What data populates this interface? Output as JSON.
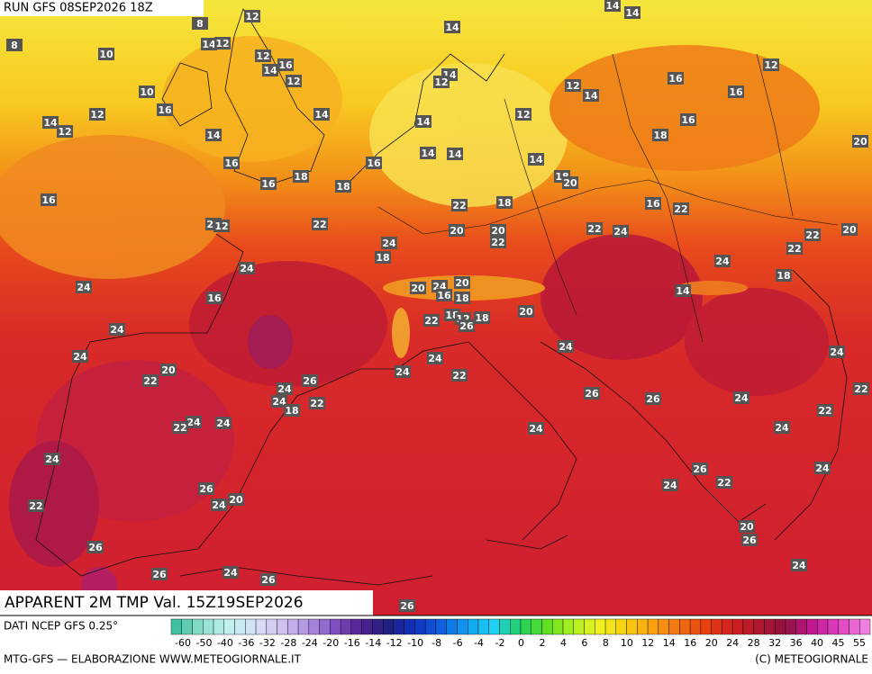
{
  "header": {
    "run": "RUN GFS 08SEP2026 18Z"
  },
  "map": {
    "labels": [
      12,
      8,
      8,
      14,
      12,
      10,
      12,
      16,
      14,
      12,
      10,
      12,
      14,
      12,
      16,
      14,
      14,
      16,
      16,
      18,
      18,
      16,
      16,
      14,
      14,
      14,
      12,
      14,
      12,
      12,
      14,
      16,
      16,
      14,
      12,
      16,
      18,
      20,
      14,
      14,
      14,
      18,
      20,
      22,
      18,
      16,
      22,
      20,
      12,
      22,
      20,
      20,
      22,
      24,
      22,
      24,
      22,
      22,
      20,
      18,
      24,
      24,
      18,
      24,
      16,
      20,
      24,
      20,
      16,
      18,
      14,
      24,
      18,
      12,
      18,
      20,
      22,
      26,
      24,
      24,
      24,
      20,
      22,
      24,
      24,
      22,
      26,
      24,
      24,
      18,
      22,
      26,
      26,
      24,
      22,
      22,
      24,
      22,
      24,
      24,
      24,
      24,
      24,
      26,
      22,
      24,
      26,
      20,
      24,
      22,
      20,
      26,
      26,
      24,
      26,
      24,
      26,
      26,
      24
    ]
  },
  "title": "APPARENT 2M TMP Val. 15Z19SEP2026",
  "legend": {
    "source": "DATI NCEP GFS 0.25°",
    "ticks": [
      -60,
      -50,
      -40,
      -36,
      -32,
      -28,
      -24,
      -20,
      -16,
      -14,
      -12,
      -10,
      -8,
      -6,
      -4,
      -2,
      0,
      2,
      4,
      6,
      8,
      10,
      12,
      14,
      16,
      20,
      24,
      28,
      32,
      36,
      40,
      45,
      55
    ]
  },
  "footer": {
    "left": "MTG-GFS — ELABORAZIONE WWW.METEOGIORNALE.IT",
    "right": "(C) METEOGIORNALE"
  }
}
